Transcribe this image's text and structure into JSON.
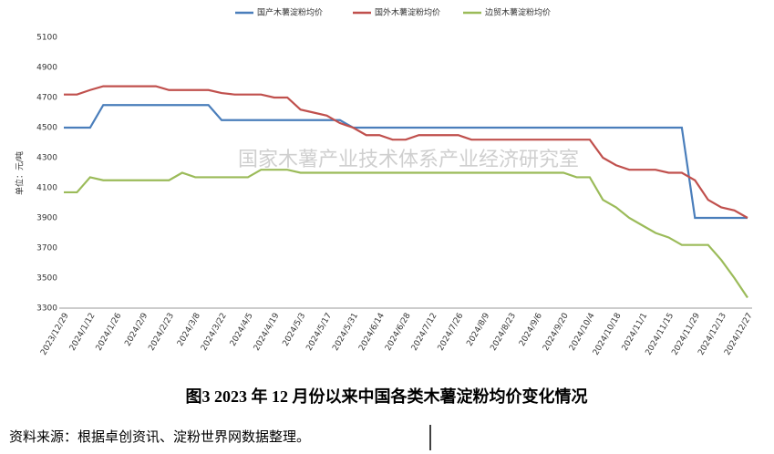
{
  "chart_data": {
    "type": "line",
    "y_label": "单位：元/吨",
    "watermark": "国家木薯产业技术体系产业经济研究室",
    "caption": "图3   2023 年 12 月份以来中国各类木薯淀粉均价变化情况",
    "source": "资料来源：根据卓创资讯、淀粉世界网数据整理。",
    "categories": [
      "2023/12/29",
      null,
      "2024/1/12",
      null,
      "2024/1/26",
      null,
      "2024/2/9",
      null,
      "2024/2/23",
      null,
      "2024/3/8",
      null,
      "2024/3/22",
      null,
      "2024/4/5",
      null,
      "2024/4/19",
      null,
      "2024/5/3",
      null,
      "2024/5/17",
      null,
      "2024/5/31",
      null,
      "2024/6/14",
      null,
      "2024/6/28",
      null,
      "2024/7/12",
      null,
      "2024/7/26",
      null,
      "2024/8/9",
      null,
      "2024/8/23",
      null,
      "2024/9/6",
      null,
      "2024/9/20",
      null,
      "2024/10/4",
      null,
      "2024/10/18",
      null,
      "2024/11/1",
      null,
      "2024/11/15",
      null,
      "2024/11/29",
      null,
      "2024/12/13",
      null,
      "2024/12/27"
    ],
    "series": [
      {
        "name": "国产木薯淀粉均价",
        "color": "#4a7ebb",
        "values": [
          4500,
          4500,
          4500,
          4650,
          4650,
          4650,
          4650,
          4650,
          4650,
          4650,
          4650,
          4650,
          4550,
          4550,
          4550,
          4550,
          4550,
          4550,
          4550,
          4550,
          4550,
          4550,
          4500,
          4500,
          4500,
          4500,
          4500,
          4500,
          4500,
          4500,
          4500,
          4500,
          4500,
          4500,
          4500,
          4500,
          4500,
          4500,
          4500,
          4500,
          4500,
          4500,
          4500,
          4500,
          4500,
          4500,
          4500,
          4500,
          3900,
          3900,
          3900,
          3900,
          3900
        ]
      },
      {
        "name": "国外木薯淀粉均价",
        "color": "#c0504d",
        "values": [
          4720,
          4720,
          4750,
          4775,
          4775,
          4775,
          4775,
          4775,
          4750,
          4750,
          4750,
          4750,
          4730,
          4720,
          4720,
          4720,
          4700,
          4700,
          4620,
          4600,
          4580,
          4530,
          4500,
          4450,
          4450,
          4420,
          4420,
          4450,
          4450,
          4450,
          4450,
          4420,
          4420,
          4420,
          4420,
          4420,
          4420,
          4420,
          4420,
          4420,
          4420,
          4300,
          4250,
          4220,
          4220,
          4220,
          4200,
          4200,
          4150,
          4020,
          3970,
          3950,
          3900
        ]
      },
      {
        "name": "边贸木薯淀粉均价",
        "color": "#9bbb59",
        "values": [
          4070,
          4070,
          4170,
          4150,
          4150,
          4150,
          4150,
          4150,
          4150,
          4200,
          4170,
          4170,
          4170,
          4170,
          4170,
          4220,
          4220,
          4220,
          4200,
          4200,
          4200,
          4200,
          4200,
          4200,
          4200,
          4200,
          4200,
          4200,
          4200,
          4200,
          4200,
          4200,
          4200,
          4200,
          4200,
          4200,
          4200,
          4200,
          4200,
          4170,
          4170,
          4020,
          3970,
          3900,
          3850,
          3800,
          3770,
          3720,
          3720,
          3720,
          3620,
          3500,
          3370
        ]
      }
    ],
    "ylim": [
      3300,
      5100
    ],
    "yticks": [
      3300,
      3500,
      3700,
      3900,
      4100,
      4300,
      4500,
      4700,
      4900,
      5100
    ],
    "grid": false,
    "legend": "top"
  }
}
